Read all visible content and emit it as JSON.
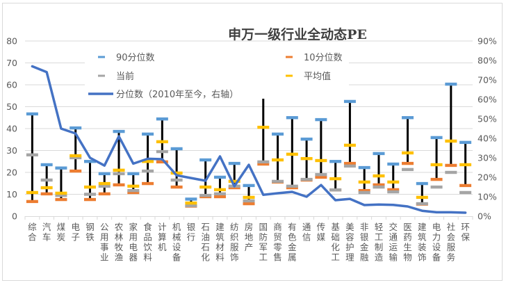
{
  "chart_data": {
    "type": "stock-range-with-line",
    "title": "申万一级行业全动态PE",
    "xlabel": "",
    "ylabel": "",
    "ylim": [
      0,
      80
    ],
    "y_ticks": [
      0,
      10,
      20,
      30,
      40,
      50,
      60,
      70,
      80
    ],
    "y2lim": [
      0,
      90
    ],
    "y2_ticks": [
      "0%",
      "10%",
      "20%",
      "30%",
      "40%",
      "50%",
      "60%",
      "70%",
      "80%",
      "90%"
    ],
    "grid": true,
    "legend_position": "top-left",
    "categories": [
      "综合",
      "汽车",
      "煤炭",
      "电子",
      "钢铁",
      "公用事业",
      "农林牧渔",
      "家用电器",
      "食品饮料",
      "计算机",
      "机械设备",
      "银行",
      "石油石化",
      "建筑材料",
      "纺织服饰",
      "房地产",
      "国防军工",
      "商贸零售",
      "有色金属",
      "通信",
      "传媒",
      "基础化工",
      "美容护理",
      "非银金融",
      "轻工制造",
      "交通运输",
      "医药生物",
      "建筑装饰",
      "电力设备",
      "社会服务",
      "环保"
    ],
    "series": [
      {
        "name": "90分位数",
        "axis": "left",
        "kind": "marker",
        "color": "#5b9bd5",
        "values": [
          46.7,
          23.5,
          22.0,
          40.3,
          25.0,
          19.4,
          38.7,
          19.4,
          37.5,
          44.4,
          30.8,
          7.8,
          25.7,
          17.8,
          24.1,
          14.0,
          62.2,
          37.5,
          45.0,
          35.2,
          44.1,
          25.0,
          52.4,
          22.2,
          28.6,
          23.8,
          45.0,
          14.9,
          35.9,
          60.3,
          33.7
        ]
      },
      {
        "name": "10分位数",
        "axis": "left",
        "kind": "marker",
        "color": "#ed7d31",
        "values": [
          6.7,
          10.2,
          7.6,
          20.6,
          7.6,
          10.2,
          14.3,
          10.8,
          14.9,
          24.8,
          13.3,
          4.6,
          8.9,
          8.9,
          13.0,
          5.7,
          23.8,
          15.6,
          13.0,
          16.5,
          17.8,
          12.0,
          24.1,
          11.7,
          14.3,
          12.1,
          24.1,
          5.5,
          16.8,
          23.2,
          14.0
        ]
      },
      {
        "name": "当前",
        "axis": "left",
        "kind": "marker",
        "color": "#a5a5a5",
        "values": [
          28.0,
          16.5,
          9.5,
          26.7,
          10.0,
          13.7,
          19.4,
          11.7,
          20.6,
          29.5,
          16.5,
          4.8,
          9.5,
          10.2,
          13.7,
          7.0,
          24.8,
          15.9,
          13.7,
          16.8,
          19.0,
          12.0,
          22.9,
          10.8,
          13.3,
          11.1,
          21.3,
          5.7,
          13.3,
          20.0,
          10.8
        ]
      },
      {
        "name": "平均值",
        "axis": "left",
        "kind": "marker",
        "color": "#ffc000",
        "values": [
          10.8,
          13.0,
          10.5,
          27.6,
          13.3,
          14.9,
          21.0,
          13.7,
          25.0,
          34.0,
          19.7,
          6.0,
          13.3,
          12.1,
          15.9,
          8.6,
          40.6,
          25.7,
          28.3,
          26.3,
          25.4,
          17.1,
          32.4,
          15.6,
          18.4,
          15.6,
          28.9,
          8.6,
          23.5,
          34.3,
          23.5
        ]
      },
      {
        "name": "分位数（2010年至今，右轴）",
        "axis": "right",
        "kind": "line",
        "color": "#4472c4",
        "unit": "%",
        "values": [
          77,
          74,
          45,
          42.5,
          30,
          26,
          41,
          27,
          29.5,
          29.3,
          21,
          19.6,
          18.2,
          30.7,
          15.4,
          26.4,
          11,
          11.8,
          12.5,
          10,
          16,
          8.2,
          8.9,
          5.7,
          6,
          5.8,
          5,
          2.8,
          2,
          2,
          1.8
        ]
      }
    ],
    "high_low_lines": {
      "from": "90分位数",
      "to": "10分位数",
      "color": "#000000"
    },
    "legend": [
      {
        "label": "90分位数",
        "color": "#5b9bd5",
        "kind": "marker"
      },
      {
        "label": "10分位数",
        "color": "#ed7d31",
        "kind": "marker"
      },
      {
        "label": "当前",
        "color": "#a5a5a5",
        "kind": "marker"
      },
      {
        "label": "平均值",
        "color": "#ffc000",
        "kind": "marker"
      },
      {
        "label": "分位数（2010年至今，右轴）",
        "color": "#4472c4",
        "kind": "line"
      }
    ]
  }
}
